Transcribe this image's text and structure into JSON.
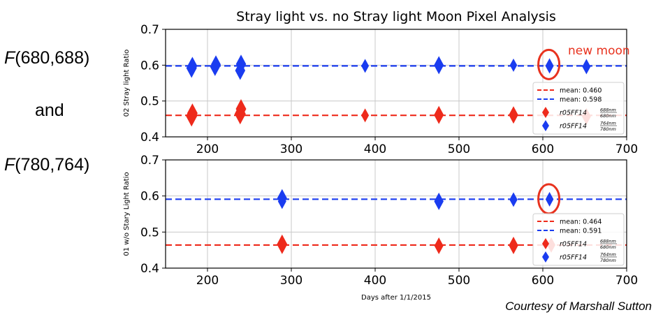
{
  "left_labels": {
    "top": {
      "func": "F",
      "args": "(680,688)"
    },
    "middle": "and",
    "bottom": {
      "func": "F",
      "args": "(780,764)"
    }
  },
  "credit": "Courtesy of Marshall Sutton",
  "annotation": "new moon",
  "colors": {
    "red": "#ee2a1b",
    "blue": "#1a3cf0",
    "annot": "#e8321e",
    "grid": "#c8c8c8"
  },
  "chart_data": [
    {
      "type": "scatter",
      "title": "Stray light vs. no Stray light Moon Pixel Analysis",
      "xlabel": "",
      "ylabel": "02 Stray light Ratio",
      "xlim": [
        150,
        700
      ],
      "ylim": [
        0.4,
        0.7
      ],
      "xticks": [
        "200",
        "300",
        "400",
        "500",
        "600",
        "700"
      ],
      "yticks": [
        "0.4",
        "0.5",
        "0.6",
        "0.7"
      ],
      "grid": true,
      "legend_position": "lower-right",
      "legend_entries": [
        {
          "label": "mean: 0.460"
        },
        {
          "label": "mean: 0.598"
        },
        {
          "label": "r05FF14",
          "frac_num": "688nm",
          "frac_den": "680nm"
        },
        {
          "label": "r05FF14",
          "frac_num": "764nm",
          "frac_den": "780nm"
        }
      ],
      "hlines": [
        {
          "value": 0.46,
          "series": "red"
        },
        {
          "value": 0.598,
          "series": "blue"
        }
      ],
      "series": [
        {
          "color": "red",
          "points": [
            {
              "x": 181,
              "y": 0.458,
              "s": 1.0
            },
            {
              "x": 182,
              "y": 0.466,
              "s": 0.9
            },
            {
              "x": 239,
              "y": 0.464,
              "s": 1.0
            },
            {
              "x": 240,
              "y": 0.478,
              "s": 0.9
            },
            {
              "x": 388,
              "y": 0.46,
              "s": 0.5
            },
            {
              "x": 476,
              "y": 0.461,
              "s": 0.8
            },
            {
              "x": 565,
              "y": 0.461,
              "s": 0.75
            },
            {
              "x": 652,
              "y": 0.457,
              "s": 0.7
            }
          ]
        },
        {
          "color": "blue",
          "points": [
            {
              "x": 181,
              "y": 0.592,
              "s": 0.9
            },
            {
              "x": 182,
              "y": 0.598,
              "s": 0.8
            },
            {
              "x": 209,
              "y": 0.595,
              "s": 0.8
            },
            {
              "x": 210,
              "y": 0.602,
              "s": 0.8
            },
            {
              "x": 239,
              "y": 0.585,
              "s": 0.85
            },
            {
              "x": 240,
              "y": 0.603,
              "s": 0.85
            },
            {
              "x": 388,
              "y": 0.598,
              "s": 0.5
            },
            {
              "x": 476,
              "y": 0.6,
              "s": 0.8
            },
            {
              "x": 565,
              "y": 0.6,
              "s": 0.45
            },
            {
              "x": 608,
              "y": 0.598,
              "s": 0.6
            },
            {
              "x": 652,
              "y": 0.596,
              "s": 0.6
            }
          ]
        }
      ],
      "highlight": {
        "x": 608,
        "y": 0.6
      }
    },
    {
      "type": "scatter",
      "title": "",
      "xlabel": "Days after 1/1/2015",
      "ylabel": "01 w/o Stary Light Ratio",
      "xlim": [
        150,
        700
      ],
      "ylim": [
        0.4,
        0.7
      ],
      "xticks": [
        "200",
        "300",
        "400",
        "500",
        "600",
        "700"
      ],
      "yticks": [
        "0.4",
        "0.5",
        "0.6",
        "0.7"
      ],
      "grid": true,
      "legend_position": "lower-right",
      "legend_entries": [
        {
          "label": "mean: 0.464"
        },
        {
          "label": "mean: 0.591"
        },
        {
          "label": "r05FF14",
          "frac_num": "688nm",
          "frac_den": "680nm"
        },
        {
          "label": "r05FF14",
          "frac_num": "764nm",
          "frac_den": "780nm"
        }
      ],
      "hlines": [
        {
          "value": 0.464,
          "series": "red"
        },
        {
          "value": 0.591,
          "series": "blue"
        }
      ],
      "series": [
        {
          "color": "red",
          "points": [
            {
              "x": 289,
              "y": 0.466,
              "s": 0.9
            },
            {
              "x": 476,
              "y": 0.462,
              "s": 0.7
            },
            {
              "x": 565,
              "y": 0.463,
              "s": 0.75
            },
            {
              "x": 610,
              "y": 0.464,
              "s": 0.6
            }
          ]
        },
        {
          "color": "blue",
          "points": [
            {
              "x": 289,
              "y": 0.594,
              "s": 0.8
            },
            {
              "x": 289,
              "y": 0.585,
              "s": 0.6
            },
            {
              "x": 476,
              "y": 0.585,
              "s": 0.75
            },
            {
              "x": 565,
              "y": 0.59,
              "s": 0.55
            },
            {
              "x": 608,
              "y": 0.591,
              "s": 0.55
            }
          ]
        }
      ],
      "highlight": {
        "x": 608,
        "y": 0.59
      }
    }
  ]
}
